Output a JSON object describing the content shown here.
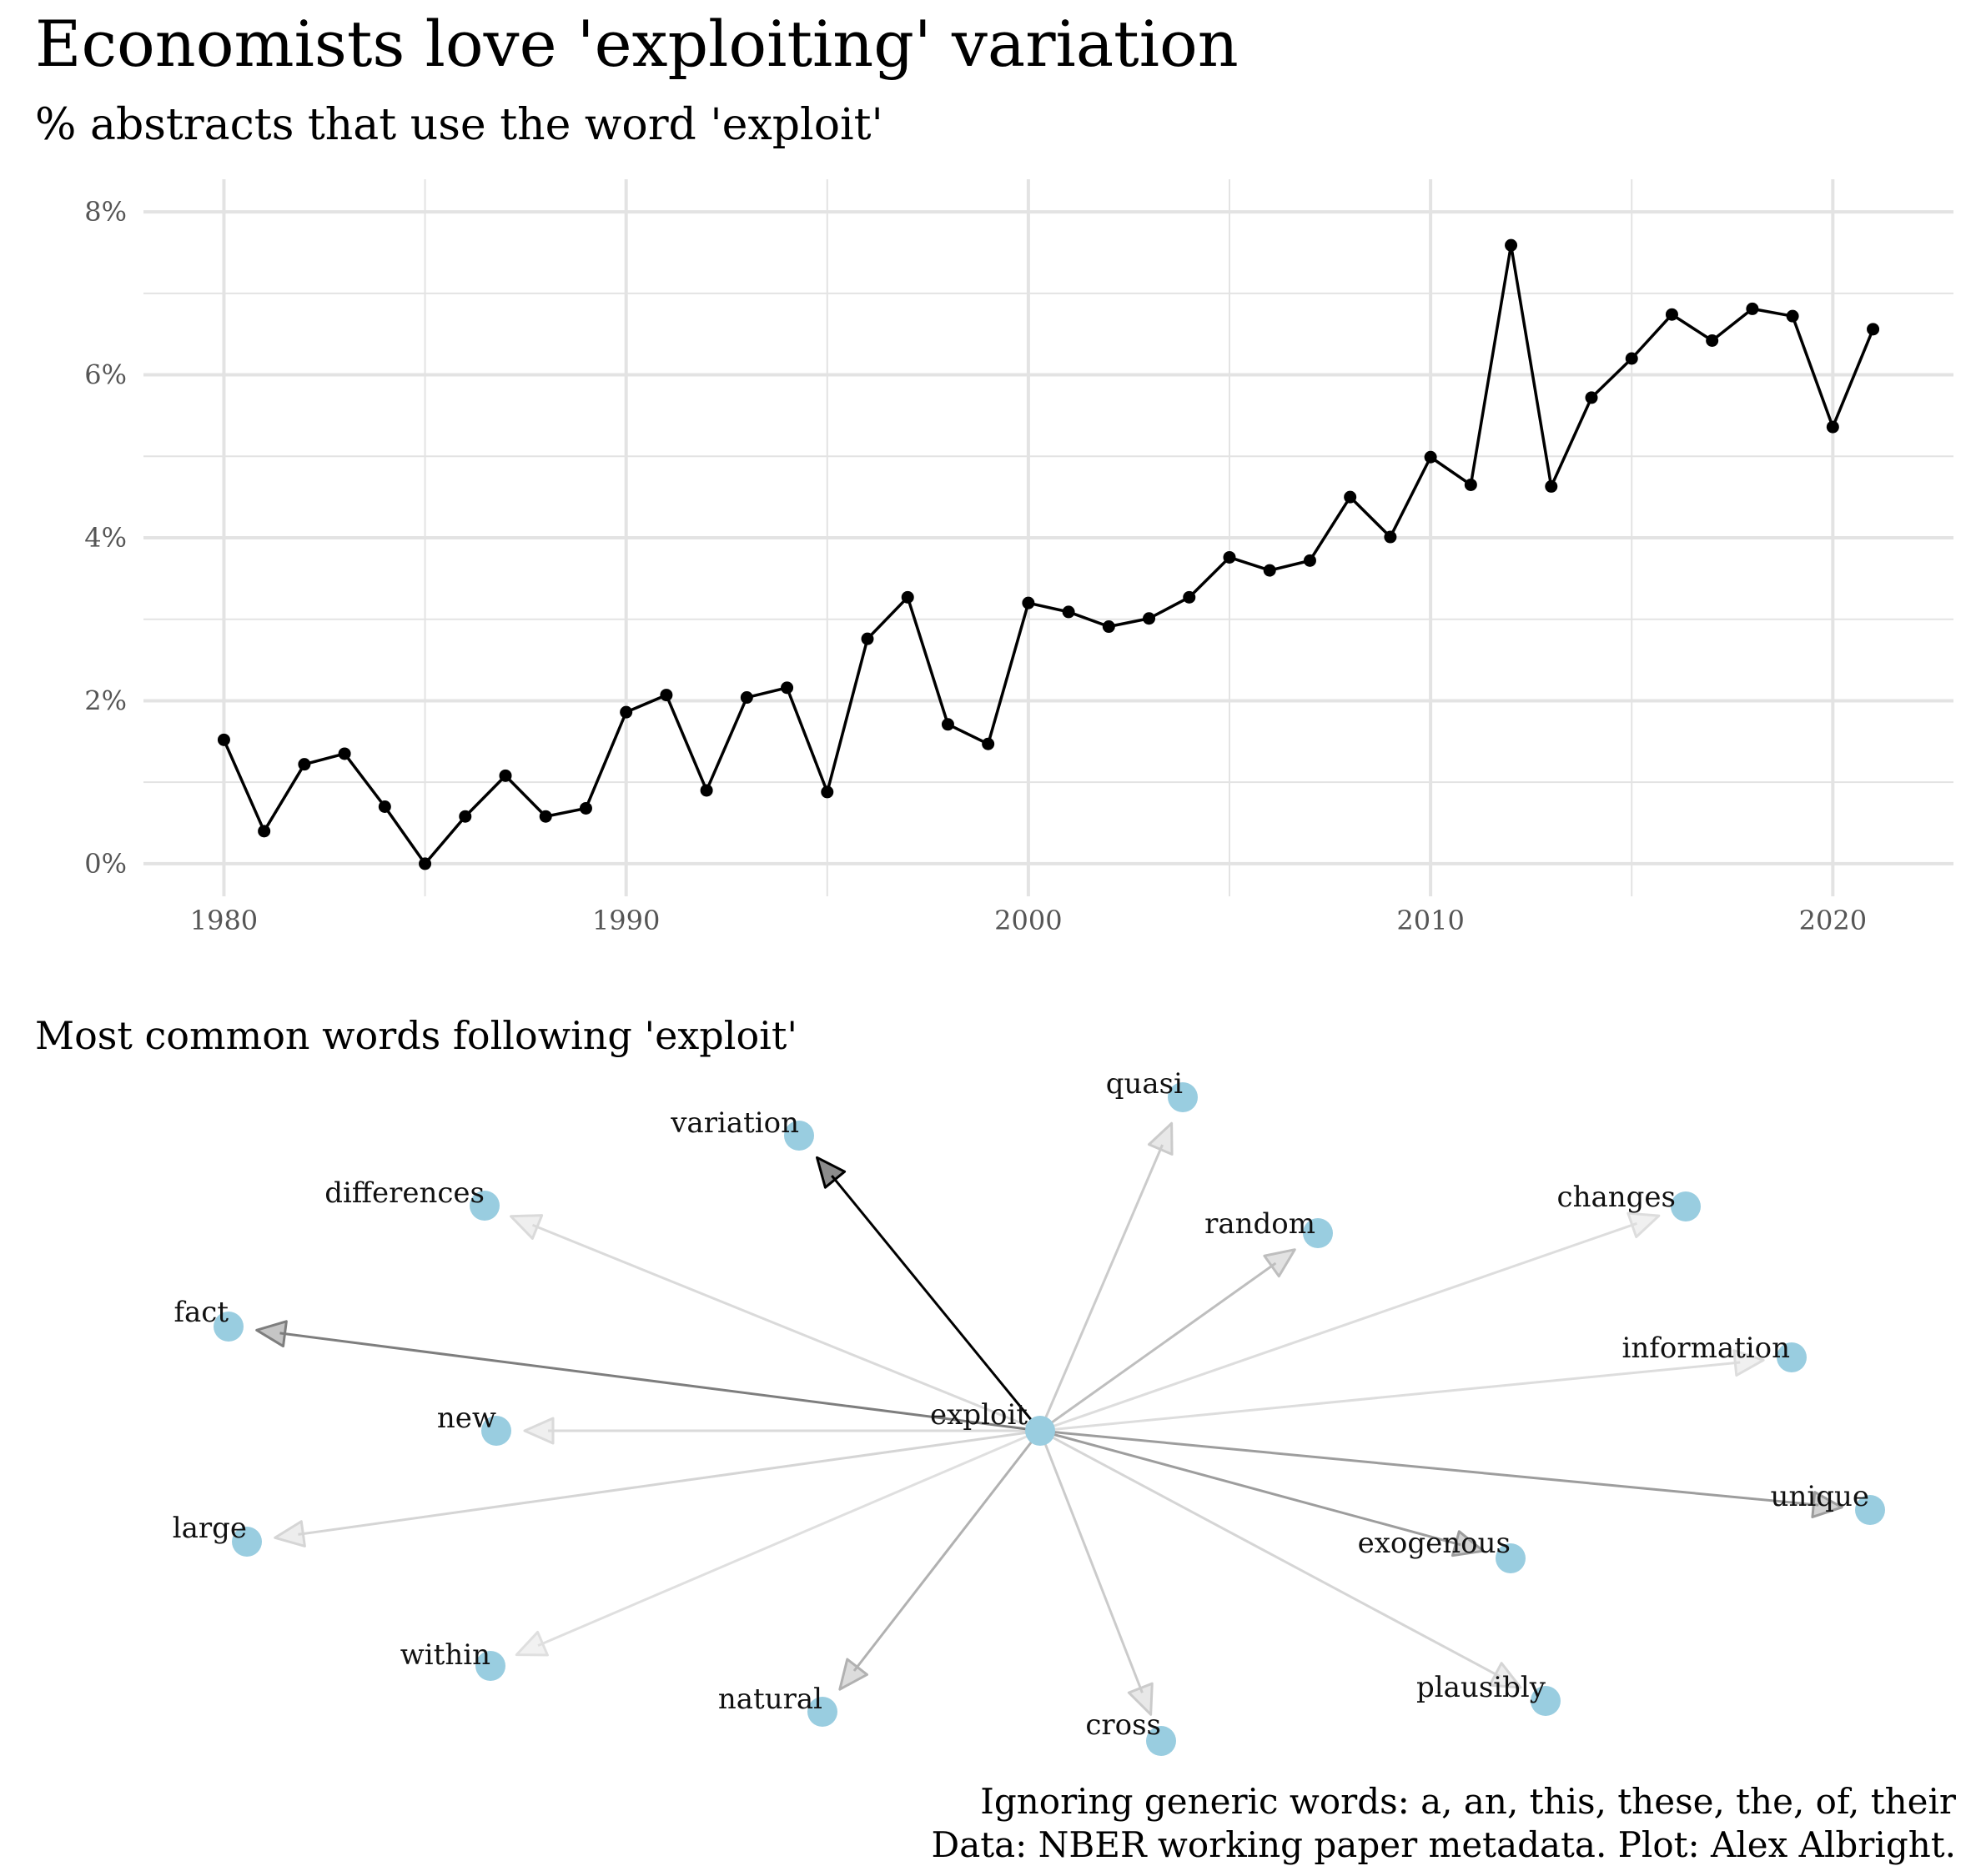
{
  "title": "Economists love 'exploiting' variation",
  "subtitle": "% abstracts that use the word 'exploit'",
  "graph_title": "Most common words following 'exploit'",
  "caption_line1": "Ignoring generic words: a, an, this, these, the, of, their",
  "caption_line2": "Data: NBER working paper metadata. Plot: Alex Albright.",
  "colors": {
    "line": "#000000",
    "grid": "#e3e3e3",
    "node": "#99cde0",
    "edge": "#000000"
  },
  "chart_data": [
    {
      "type": "line",
      "title": "% abstracts that use the word 'exploit'",
      "xlabel": "",
      "ylabel": "",
      "xlim": [
        1978,
        2023
      ],
      "ylim": [
        -0.4,
        8.4
      ],
      "x_ticks": [
        1980,
        1990,
        2000,
        2010,
        2020
      ],
      "y_ticks": [
        0,
        2,
        4,
        6,
        8
      ],
      "y_tick_labels": [
        "0%",
        "2%",
        "4%",
        "6%",
        "8%"
      ],
      "grid": true,
      "legend": "none",
      "x": [
        1980,
        1981,
        1982,
        1983,
        1984,
        1985,
        1986,
        1987,
        1988,
        1989,
        1990,
        1991,
        1992,
        1993,
        1994,
        1995,
        1996,
        1997,
        1998,
        1999,
        2000,
        2001,
        2002,
        2003,
        2004,
        2005,
        2006,
        2007,
        2008,
        2009,
        2010,
        2011,
        2012,
        2013,
        2014,
        2015,
        2016,
        2017,
        2018,
        2019,
        2020,
        2021
      ],
      "y": [
        1.52,
        0.4,
        1.22,
        1.35,
        0.7,
        0.0,
        0.58,
        1.08,
        0.58,
        0.68,
        1.86,
        2.07,
        0.9,
        2.04,
        2.16,
        0.88,
        2.76,
        3.27,
        1.71,
        1.47,
        3.2,
        3.09,
        2.91,
        3.01,
        3.27,
        3.76,
        3.6,
        3.72,
        4.5,
        4.01,
        4.99,
        4.65,
        7.59,
        4.63,
        5.72,
        6.2,
        6.74,
        6.42,
        6.81,
        6.72,
        5.36,
        6.56
      ]
    },
    {
      "type": "network",
      "title": "Most common words following 'exploit'",
      "center": "exploit",
      "edges": [
        {
          "word": "variation",
          "alpha": 1.0
        },
        {
          "word": "fact",
          "alpha": 0.5
        },
        {
          "word": "unique",
          "alpha": 0.38
        },
        {
          "word": "exogenous",
          "alpha": 0.38
        },
        {
          "word": "natural",
          "alpha": 0.3
        },
        {
          "word": "random",
          "alpha": 0.25
        },
        {
          "word": "cross",
          "alpha": 0.2
        },
        {
          "word": "quasi",
          "alpha": 0.2
        },
        {
          "word": "large",
          "alpha": 0.16
        },
        {
          "word": "plausibly",
          "alpha": 0.16
        },
        {
          "word": "differences",
          "alpha": 0.14
        },
        {
          "word": "new",
          "alpha": 0.14
        },
        {
          "word": "changes",
          "alpha": 0.13
        },
        {
          "word": "information",
          "alpha": 0.13
        },
        {
          "word": "within",
          "alpha": 0.12
        }
      ]
    }
  ]
}
